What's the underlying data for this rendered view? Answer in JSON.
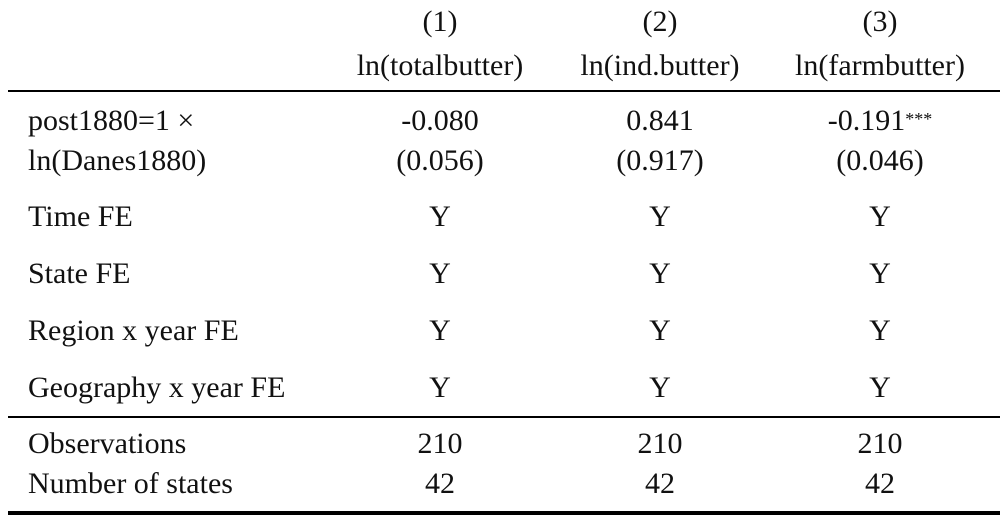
{
  "columns": [
    {
      "number": "(1)",
      "dependent": "ln(totalbutter)"
    },
    {
      "number": "(2)",
      "dependent": "ln(ind.butter)"
    },
    {
      "number": "(3)",
      "dependent": "ln(farmbutter)"
    }
  ],
  "coef_row": {
    "label_line1": "post1880=1 ×",
    "label_line2": "ln(Danes1880)",
    "estimates": [
      "-0.080",
      "0.841",
      "-0.191"
    ],
    "stars": [
      "",
      "",
      "***"
    ],
    "std_errors": [
      "(0.056)",
      "(0.917)",
      "(0.046)"
    ]
  },
  "fe_rows": [
    {
      "label": "Time FE",
      "values": [
        "Y",
        "Y",
        "Y"
      ]
    },
    {
      "label": "State FE",
      "values": [
        "Y",
        "Y",
        "Y"
      ]
    },
    {
      "label": "Region x year FE",
      "values": [
        "Y",
        "Y",
        "Y"
      ]
    },
    {
      "label": "Geography x year FE",
      "values": [
        "Y",
        "Y",
        "Y"
      ]
    }
  ],
  "stat_rows": [
    {
      "label": "Observations",
      "values": [
        "210",
        "210",
        "210"
      ]
    },
    {
      "label": "Number of states",
      "values": [
        "42",
        "42",
        "42"
      ]
    }
  ]
}
